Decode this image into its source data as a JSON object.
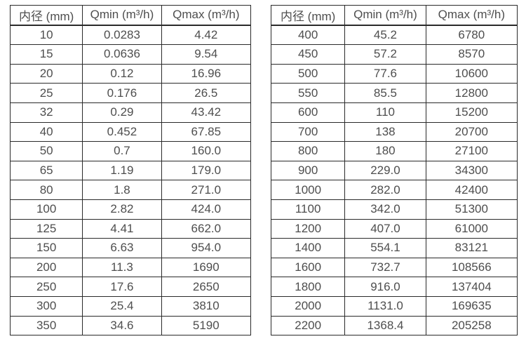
{
  "colors": {
    "background": "#ffffff",
    "table_border": "#2a2a2a",
    "text": "#4e4e4e"
  },
  "tables": [
    {
      "headers": [
        "内径 (mm)",
        "Qmin (m³/h)",
        "Qmax (m³/h)"
      ],
      "rows": [
        [
          "10",
          "0.0283",
          "4.42"
        ],
        [
          "15",
          "0.0636",
          "9.54"
        ],
        [
          "20",
          "0.12",
          "16.96"
        ],
        [
          "25",
          "0.176",
          "26.5"
        ],
        [
          "32",
          "0.29",
          "43.42"
        ],
        [
          "40",
          "0.452",
          "67.85"
        ],
        [
          "50",
          "0.7",
          "160.0"
        ],
        [
          "65",
          "1.19",
          "179.0"
        ],
        [
          "80",
          "1.8",
          "271.0"
        ],
        [
          "100",
          "2.82",
          "424.0"
        ],
        [
          "125",
          "4.41",
          "662.0"
        ],
        [
          "150",
          "6.63",
          "954.0"
        ],
        [
          "200",
          "11.3",
          "1690"
        ],
        [
          "250",
          "17.6",
          "2650"
        ],
        [
          "300",
          "25.4",
          "3810"
        ],
        [
          "350",
          "34.6",
          "5190"
        ]
      ]
    },
    {
      "headers": [
        "内径 (mm)",
        "Qmin (m³/h)",
        "Qmax (m³/h)"
      ],
      "rows": [
        [
          "400",
          "45.2",
          "6780"
        ],
        [
          "450",
          "57.2",
          "8570"
        ],
        [
          "500",
          "77.6",
          "10600"
        ],
        [
          "550",
          "85.5",
          "12800"
        ],
        [
          "600",
          "110",
          "15200"
        ],
        [
          "700",
          "138",
          "20700"
        ],
        [
          "800",
          "180",
          "27100"
        ],
        [
          "900",
          "229.0",
          "34300"
        ],
        [
          "1000",
          "282.0",
          "42400"
        ],
        [
          "1100",
          "342.0",
          "51300"
        ],
        [
          "1200",
          "407.0",
          "61000"
        ],
        [
          "1400",
          "554.1",
          "83121"
        ],
        [
          "1600",
          "732.7",
          "108566"
        ],
        [
          "1800",
          "916.0",
          "137404"
        ],
        [
          "2000",
          "1131.0",
          "169635"
        ],
        [
          "2200",
          "1368.4",
          "205258"
        ]
      ]
    }
  ]
}
